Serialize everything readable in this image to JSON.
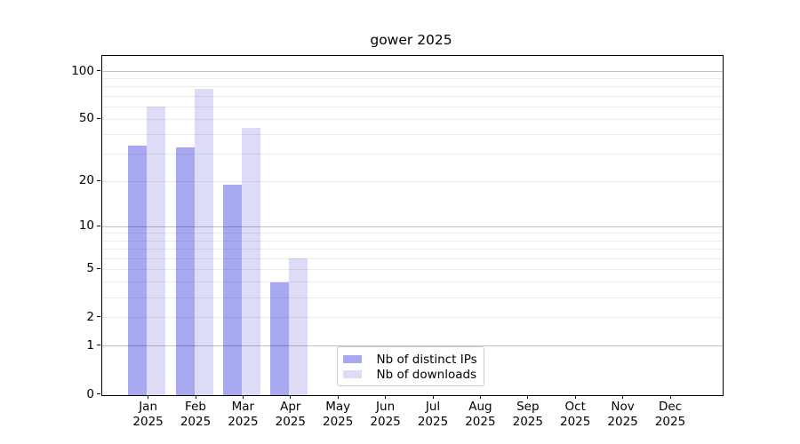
{
  "chart_data": {
    "type": "bar",
    "title": "gower 2025",
    "x_year": "2025",
    "categories": [
      "Jan",
      "Feb",
      "Mar",
      "Apr",
      "May",
      "Jun",
      "Jul",
      "Aug",
      "Sep",
      "Oct",
      "Nov",
      "Dec"
    ],
    "series": [
      {
        "name": "Nb of distinct IPs",
        "color": "#a8a8f0",
        "values": [
          34,
          33,
          19,
          4,
          0,
          0,
          0,
          0,
          0,
          0,
          0,
          0
        ]
      },
      {
        "name": "Nb of downloads",
        "color": "#dcdcf7",
        "values": [
          60,
          78,
          44,
          6,
          0,
          0,
          0,
          0,
          0,
          0,
          0,
          0
        ]
      }
    ],
    "y_ticks": [
      0,
      1,
      2,
      5,
      10,
      20,
      50,
      100
    ],
    "y_scale": "log1p",
    "ylim": [
      0,
      126
    ],
    "grid": {
      "axis": "y",
      "major": [
        1,
        10,
        100
      ],
      "minor": [
        2,
        3,
        4,
        5,
        6,
        7,
        8,
        9,
        20,
        30,
        40,
        50,
        60,
        70,
        80,
        90
      ]
    },
    "legend": {
      "position": "lower center"
    }
  }
}
